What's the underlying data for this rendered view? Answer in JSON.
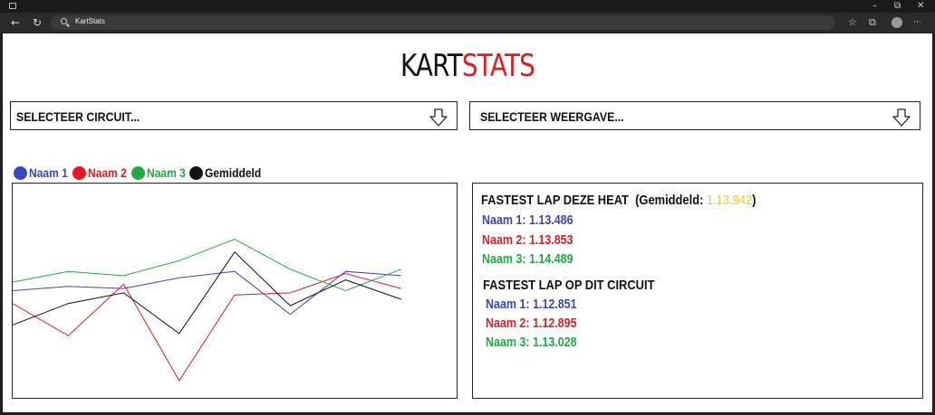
{
  "browser": {
    "address": "KartStats",
    "minimize_glyph": "–",
    "restore_glyph": "⧉",
    "close_glyph": "✕",
    "back_glyph": "←",
    "reload_glyph": "↻",
    "favorites_glyph": "☆",
    "collections_glyph": "⧉",
    "menu_glyph": "···"
  },
  "header": {
    "title_part1": "KART",
    "title_part2": "STATS"
  },
  "selects": {
    "circuit_placeholder": "SELECTEER CIRCUIT...",
    "view_placeholder": "SELECTEER WEERGAVE..."
  },
  "colors": {
    "naam1": "#3b45c2",
    "naam2": "#e21b23",
    "naam3": "#1faa43",
    "gemiddeld": "#111111",
    "highlight": "#f2c12e"
  },
  "legend": [
    {
      "label": "Naam 1",
      "color": "#3b45c2"
    },
    {
      "label": "Naam 2",
      "color": "#e21b23"
    },
    {
      "label": "Naam 3",
      "color": "#1faa43"
    },
    {
      "label": "Gemiddeld",
      "color": "#111111"
    }
  ],
  "chart_data": {
    "type": "line",
    "title": "",
    "xlabel": "",
    "ylabel": "",
    "grid": false,
    "legend_position": "top-left",
    "x": [
      1,
      2,
      3,
      4,
      5,
      6,
      7,
      8,
      9
    ],
    "ylim": [
      0,
      100
    ],
    "series": [
      {
        "name": "Naam 1",
        "color": "#3b45c2",
        "values": [
          50,
          52,
          51,
          56,
          59,
          39,
          59,
          57,
          null
        ]
      },
      {
        "name": "Naam 2",
        "color": "#e21b23",
        "values": [
          44,
          29,
          53,
          8,
          48,
          49,
          58,
          51,
          null
        ]
      },
      {
        "name": "Naam 3",
        "color": "#1faa43",
        "values": [
          54,
          59,
          57,
          64,
          74,
          60,
          50,
          60,
          null
        ]
      },
      {
        "name": "Gemiddeld",
        "color": "#111111",
        "values": [
          34,
          44,
          49,
          30,
          68,
          43,
          55,
          46,
          null
        ]
      }
    ]
  },
  "stats": {
    "heat_title": "FASTEST LAP  DEZE HEAT",
    "heat_avg_label": "(Gemiddeld:",
    "heat_avg_value": "1.13.942",
    "heat_avg_close": ")",
    "heat_rows": [
      "Naam 1: 1.13.486",
      "Naam 2: 1.13.853",
      "Naam 3: 1.14.489"
    ],
    "circuit_title": "FASTEST LAP OP DIT CIRCUIT",
    "circuit_rows": [
      "Naam 1: 1.12.851",
      "Naam 2: 1.12.895",
      "Naam 3: 1.13.028"
    ]
  }
}
